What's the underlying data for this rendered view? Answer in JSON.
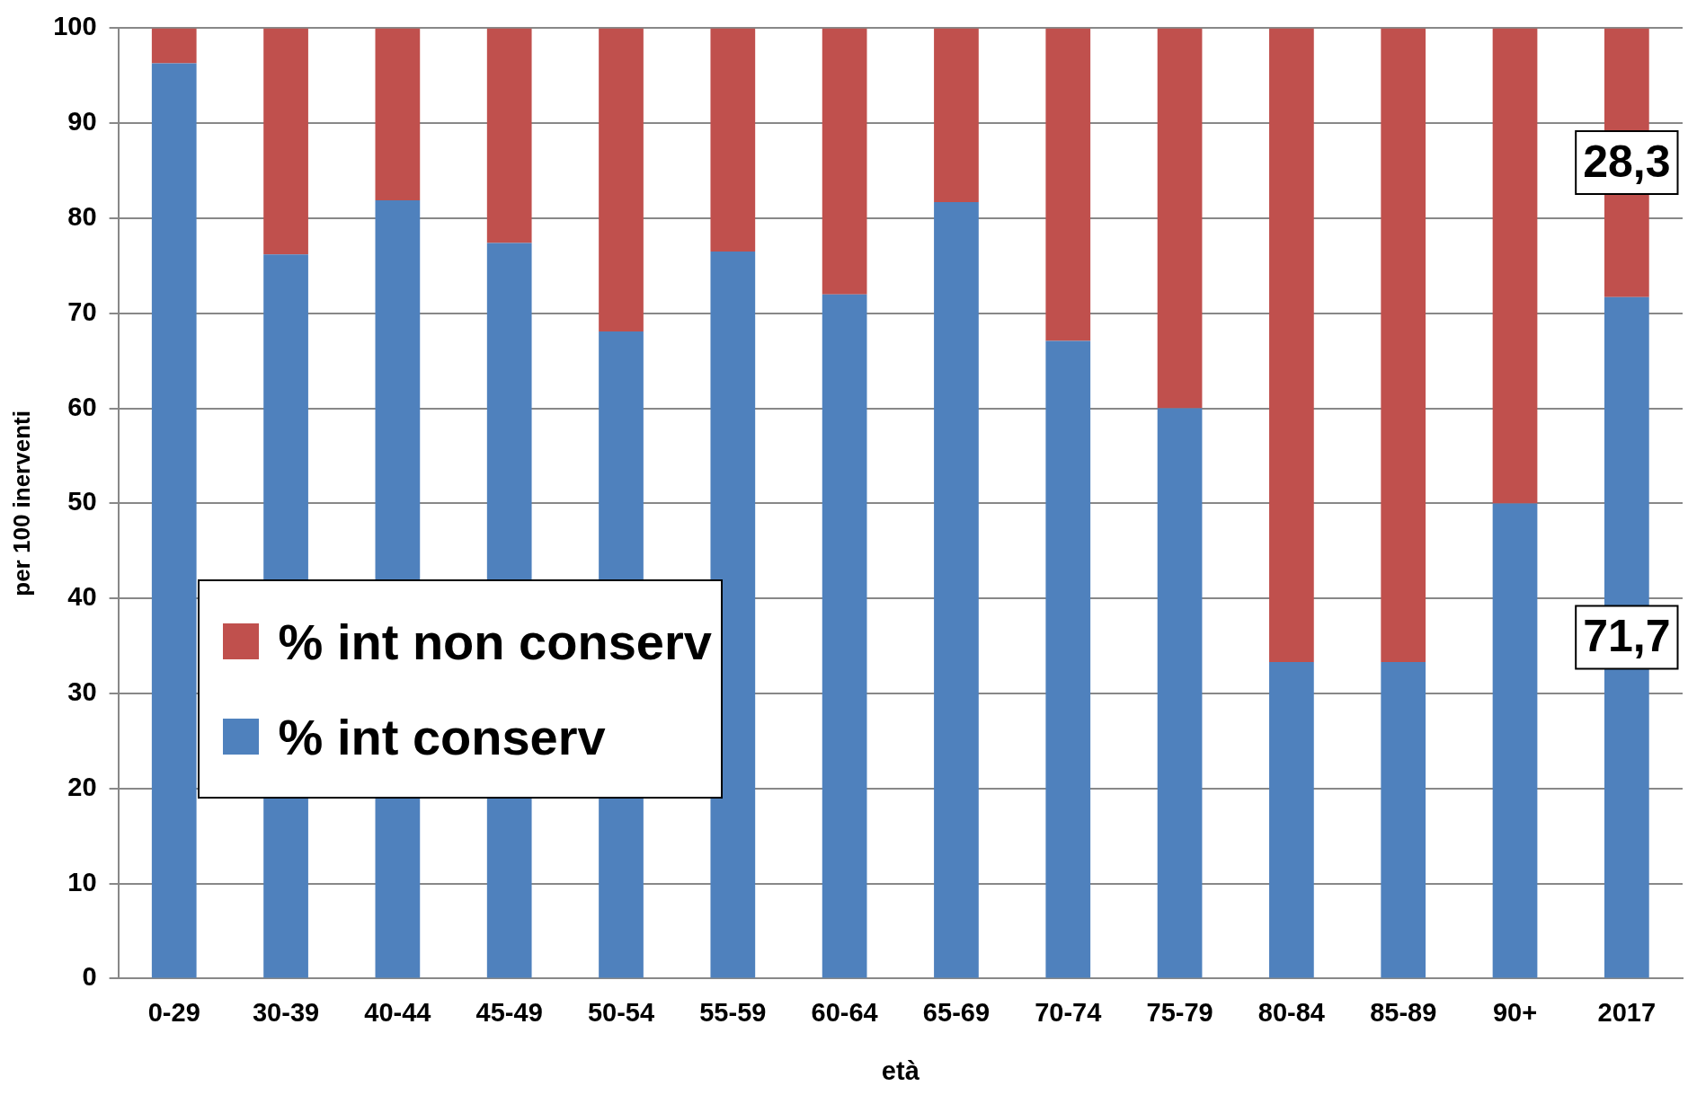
{
  "chart_data": {
    "type": "bar",
    "stacked": true,
    "xlabel": "età",
    "ylabel": "per 100 inerventi",
    "categories": [
      "0-29",
      "30-39",
      "40-44",
      "45-49",
      "50-54",
      "55-59",
      "60-64",
      "65-69",
      "70-74",
      "75-79",
      "80-84",
      "85-89",
      "90+",
      "2017"
    ],
    "series": [
      {
        "name": "% int conserv",
        "color": "#4f81bd",
        "values": [
          96.3,
          76.2,
          81.9,
          77.4,
          68.1,
          76.5,
          72.0,
          81.7,
          67.1,
          60.0,
          33.3,
          33.3,
          50.0,
          71.7
        ],
        "value_labels": [
          null,
          null,
          null,
          null,
          null,
          null,
          null,
          null,
          null,
          null,
          null,
          null,
          null,
          "71,7"
        ]
      },
      {
        "name": "% int non conserv",
        "color": "#c0504d",
        "values": [
          3.7,
          23.8,
          18.1,
          22.6,
          31.9,
          23.5,
          28.0,
          18.3,
          32.9,
          40.0,
          66.7,
          66.7,
          50.0,
          28.3
        ],
        "value_labels": [
          null,
          null,
          null,
          null,
          null,
          null,
          null,
          null,
          null,
          null,
          null,
          null,
          null,
          "28,3"
        ]
      }
    ],
    "ylim": [
      0,
      100
    ],
    "yticks": [
      0,
      10,
      20,
      30,
      40,
      50,
      60,
      70,
      80,
      90,
      100
    ],
    "grid": "y",
    "legend": "left"
  }
}
